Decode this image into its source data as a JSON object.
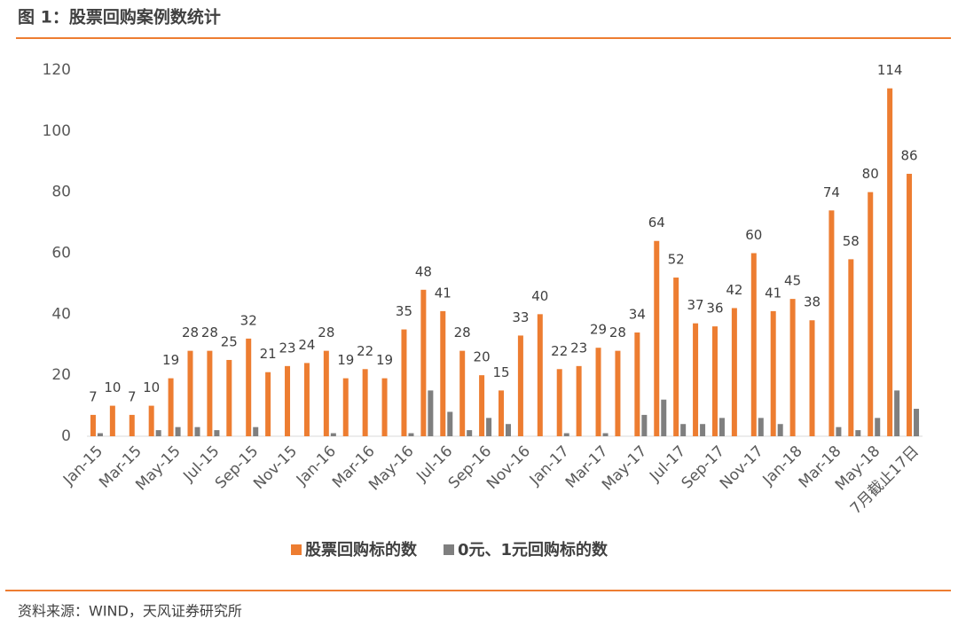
{
  "header": {
    "title": "图 1：股票回购案例数统计"
  },
  "footer": {
    "source": "资料来源：WIND，天风证券研究所"
  },
  "chart_data": {
    "type": "bar",
    "categories": [
      "Jan-15",
      null,
      "Mar-15",
      null,
      "May-15",
      null,
      "Jul-15",
      null,
      "Sep-15",
      null,
      "Nov-15",
      null,
      "Jan-16",
      null,
      "Mar-16",
      null,
      "May-16",
      null,
      "Jul-16",
      null,
      "Sep-16",
      null,
      "Nov-16",
      null,
      "Jan-17",
      null,
      "Mar-17",
      null,
      "May-17",
      null,
      "Jul-17",
      null,
      "Sep-17",
      null,
      "Nov-17",
      null,
      "Jan-18",
      null,
      "Mar-18",
      null,
      "May-18",
      null,
      "7月截止17日"
    ],
    "series": [
      {
        "name": "股票回购标的数",
        "color": "#ed7d31",
        "values": [
          7,
          10,
          7,
          10,
          19,
          28,
          28,
          25,
          32,
          21,
          23,
          24,
          28,
          19,
          22,
          19,
          35,
          48,
          41,
          28,
          20,
          15,
          33,
          40,
          22,
          23,
          29,
          28,
          34,
          64,
          52,
          37,
          36,
          42,
          60,
          41,
          45,
          38,
          74,
          58,
          80,
          114,
          86
        ]
      },
      {
        "name": "0元、1元回购标的数",
        "color": "#7f7f7f",
        "values": [
          1,
          0,
          0,
          2,
          3,
          3,
          2,
          0,
          3,
          0,
          0,
          0,
          1,
          0,
          0,
          0,
          1,
          15,
          8,
          2,
          6,
          4,
          0,
          0,
          1,
          0,
          1,
          0,
          7,
          12,
          4,
          4,
          6,
          0,
          6,
          4,
          0,
          0,
          3,
          2,
          6,
          15,
          9
        ]
      }
    ],
    "ylim": [
      0,
      120
    ],
    "yticks": [
      0,
      20,
      40,
      60,
      80,
      100,
      120
    ],
    "grid": false,
    "legend": "bottom"
  }
}
